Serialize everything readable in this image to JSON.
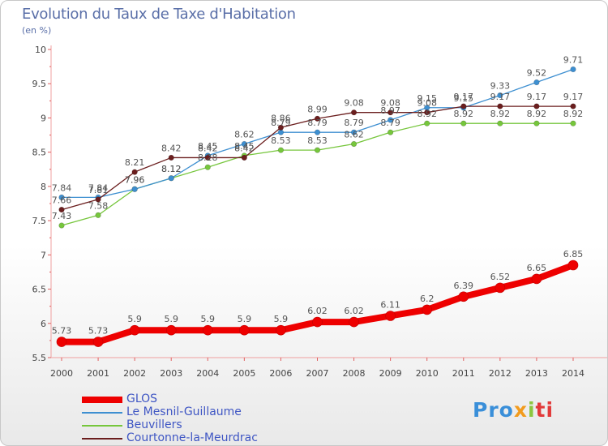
{
  "chart_data": {
    "type": "line",
    "title": "Evolution du Taux de Taxe d'Habitation",
    "subtitle": "(en %)",
    "x": [
      "2000",
      "2001",
      "2002",
      "2003",
      "2004",
      "2005",
      "2006",
      "2007",
      "2008",
      "2009",
      "2010",
      "2011",
      "2012",
      "2013",
      "2014"
    ],
    "ylim": [
      5.5,
      10
    ],
    "yticks": [
      "5.5",
      "6",
      "6.5",
      "7",
      "7.5",
      "8",
      "8.5",
      "9",
      "9.5",
      "10"
    ],
    "grid": false,
    "legend_position": "bottom-left",
    "series": [
      {
        "name": "GLOS",
        "color": "#ee0000",
        "values": [
          5.73,
          5.73,
          5.9,
          5.9,
          5.9,
          5.9,
          5.9,
          6.02,
          6.02,
          6.11,
          6.2,
          6.39,
          6.52,
          6.65,
          6.85
        ],
        "labels": [
          "5.73",
          "5.73",
          "5.9",
          "5.9",
          "5.9",
          "5.9",
          "5.9",
          "6.02",
          "6.02",
          "6.11",
          "6.2",
          "6.39",
          "6.52",
          "6.65",
          "6.85"
        ]
      },
      {
        "name": "Le Mesnil-Guillaume",
        "color": "#3d8fd1",
        "values": [
          7.84,
          7.84,
          7.96,
          8.12,
          8.45,
          8.62,
          8.79,
          8.79,
          8.79,
          8.97,
          9.15,
          9.15,
          9.33,
          9.52,
          9.71
        ],
        "labels": [
          "7.84",
          "7.84",
          "7.96",
          "8.12",
          "8.45",
          "8.62",
          "8.79",
          "8.79",
          "8.79",
          "8.97",
          "9.15",
          "9.15",
          "9.33",
          "9.52",
          "9.71"
        ]
      },
      {
        "name": "Beuvillers",
        "color": "#76c63c",
        "values": [
          7.43,
          7.58,
          7.96,
          8.12,
          8.28,
          8.45,
          8.53,
          8.53,
          8.62,
          8.79,
          8.92,
          8.92,
          8.92,
          8.92,
          8.92
        ],
        "labels": [
          "7.43",
          "7.58",
          "7.96",
          "8.12",
          "8.28",
          "8.45",
          "8.53",
          "8.53",
          "8.62",
          "8.79",
          "8.92",
          "8.92",
          "8.92",
          "8.92",
          "8.92"
        ]
      },
      {
        "name": "Courtonne-la-Meurdrac",
        "color": "#6b1e1e",
        "values": [
          7.66,
          7.81,
          8.21,
          8.42,
          8.42,
          8.42,
          8.86,
          8.99,
          9.08,
          9.08,
          9.08,
          9.17,
          9.17,
          9.17,
          9.17
        ],
        "labels": [
          "7.66",
          "7.81",
          "8.21",
          "8.42",
          "8.42",
          "8.42",
          "8.86",
          "8.99",
          "9.08",
          "9.08",
          "9.08",
          "9.17",
          "9.17",
          "9.17",
          "9.17"
        ]
      }
    ]
  },
  "brand": {
    "p1": "Pro",
    "p2": "x",
    "p3": "i",
    "p4": "ti"
  }
}
